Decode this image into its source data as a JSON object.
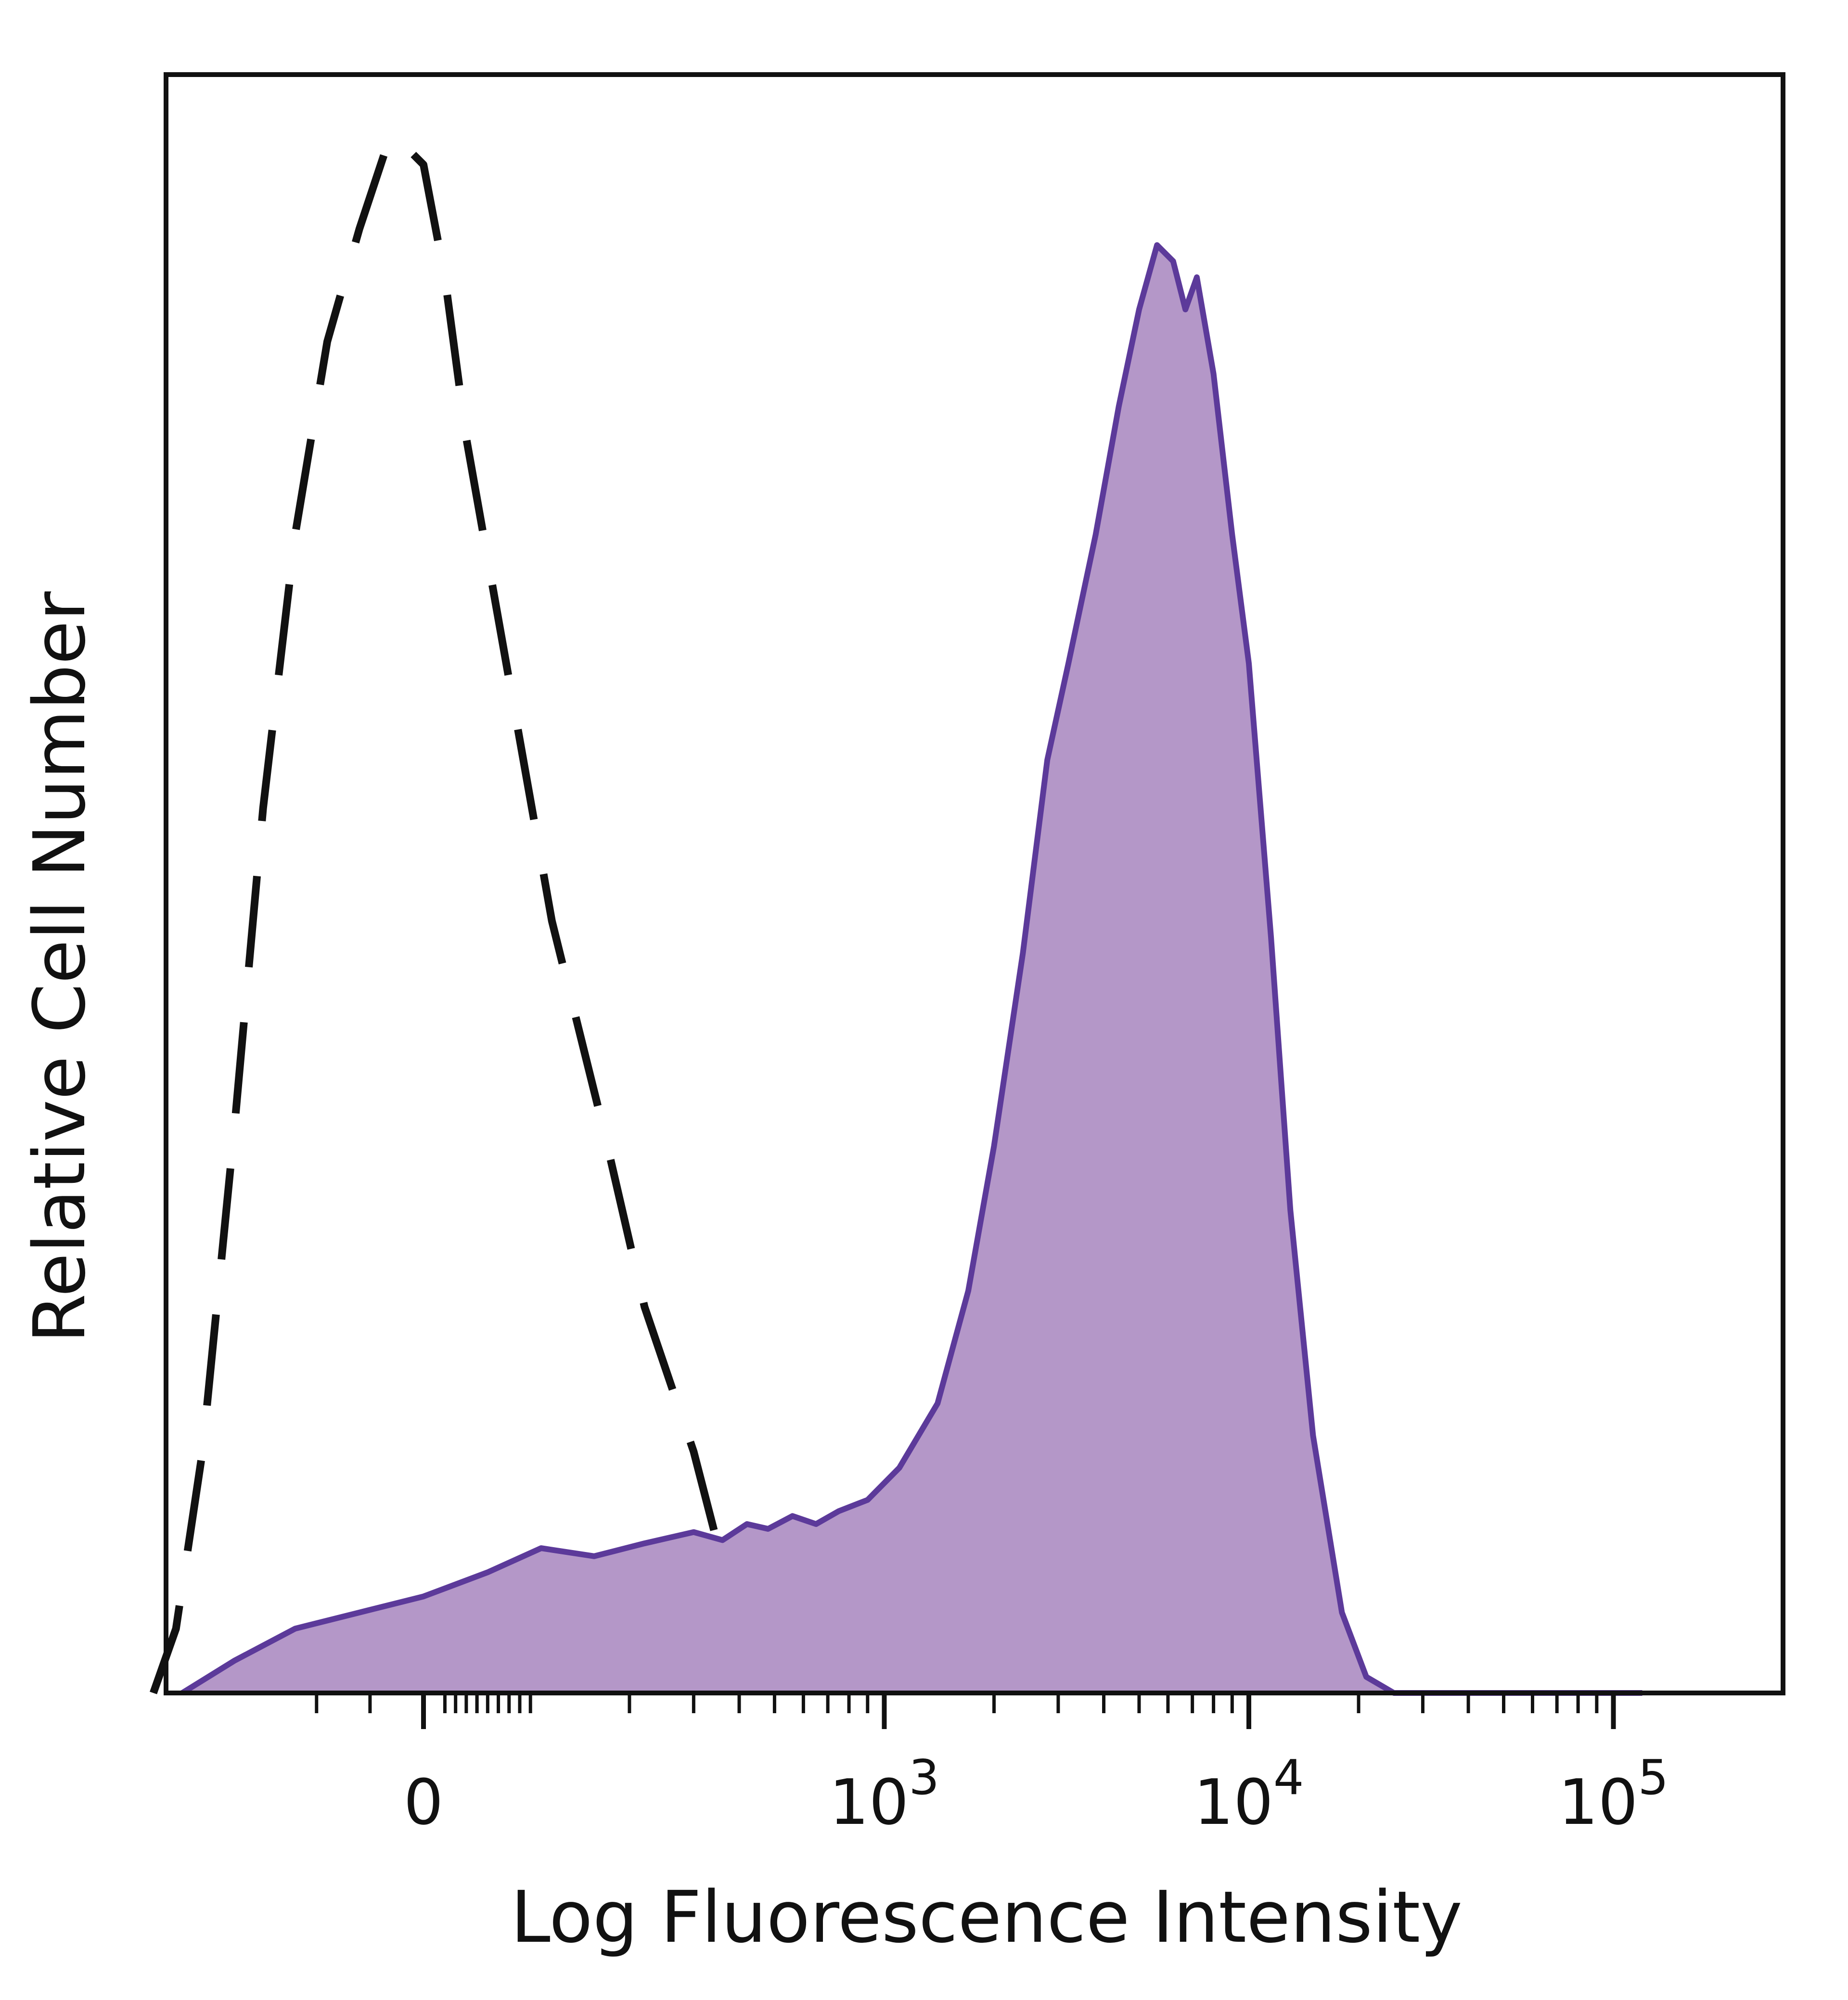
{
  "chart_data": {
    "type": "area",
    "title": "",
    "xlabel": "Log Fluorescence Intensity",
    "ylabel": "Relative Cell Number",
    "x_scale": "biexponential",
    "x_tick_labels": [
      {
        "value": 0,
        "label": "0"
      },
      {
        "value": 1000,
        "base": "10",
        "exp": "3"
      },
      {
        "value": 10000,
        "base": "10",
        "exp": "4"
      },
      {
        "value": 100000,
        "base": "10",
        "exp": "5"
      }
    ],
    "ylim": [
      0,
      100
    ],
    "grid": false,
    "legend": "none",
    "series": [
      {
        "style": "dashed",
        "color": "#111111",
        "fill": "none",
        "points": [
          [
            -300,
            0
          ],
          [
            -260,
            4
          ],
          [
            -220,
            15
          ],
          [
            -180,
            35
          ],
          [
            -150,
            55
          ],
          [
            -120,
            72
          ],
          [
            -90,
            84
          ],
          [
            -60,
            91
          ],
          [
            -30,
            97
          ],
          [
            0,
            95
          ],
          [
            20,
            88
          ],
          [
            40,
            78
          ],
          [
            80,
            63
          ],
          [
            120,
            48
          ],
          [
            170,
            35
          ],
          [
            220,
            24
          ],
          [
            300,
            15
          ],
          [
            380,
            6
          ]
        ]
      },
      {
        "style": "solid",
        "color": "#5c3a9a",
        "fill": "#b497c8",
        "points": [
          [
            -250,
            0
          ],
          [
            -180,
            2
          ],
          [
            -120,
            4
          ],
          [
            -60,
            5
          ],
          [
            0,
            6
          ],
          [
            60,
            7.5
          ],
          [
            110,
            9
          ],
          [
            160,
            8.5
          ],
          [
            220,
            9.3
          ],
          [
            300,
            10
          ],
          [
            360,
            9.5
          ],
          [
            420,
            10.5
          ],
          [
            480,
            10.2
          ],
          [
            560,
            11
          ],
          [
            650,
            10.5
          ],
          [
            750,
            11.3
          ],
          [
            900,
            12
          ],
          [
            1100,
            14
          ],
          [
            1400,
            18
          ],
          [
            1700,
            25
          ],
          [
            2000,
            34
          ],
          [
            2400,
            46
          ],
          [
            2800,
            58
          ],
          [
            3200,
            64
          ],
          [
            3800,
            72
          ],
          [
            4400,
            80
          ],
          [
            5000,
            86
          ],
          [
            5600,
            90
          ],
          [
            6200,
            89
          ],
          [
            6700,
            86
          ],
          [
            7200,
            88
          ],
          [
            8000,
            82
          ],
          [
            9000,
            72
          ],
          [
            10000,
            64
          ],
          [
            11500,
            47
          ],
          [
            13000,
            30
          ],
          [
            15000,
            16
          ],
          [
            18000,
            5
          ],
          [
            21000,
            1
          ],
          [
            25000,
            0
          ],
          [
            120000,
            0
          ]
        ]
      }
    ]
  }
}
